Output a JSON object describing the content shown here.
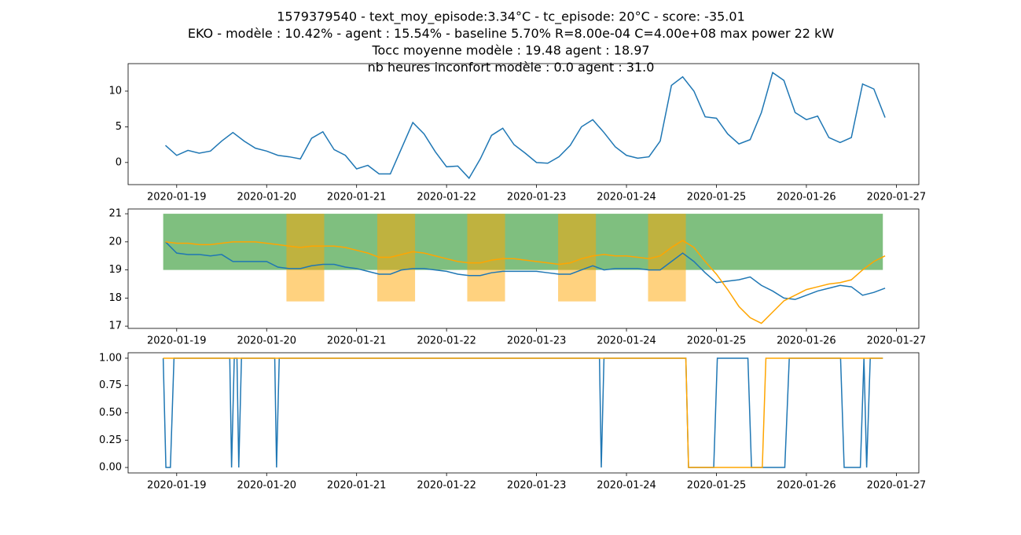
{
  "chart_data": [
    {
      "type": "line",
      "title": [
        "1579379540 - text_moy_episode:3.34°C - tc_episode: 20°C - score: -35.01",
        "EKO - modèle : 10.42% - agent : 15.54% - baseline 5.70% R=8.00e-04 C=4.00e+08 max power 22 kW",
        "Tocc moyenne modèle : 19.48 agent : 18.97",
        "nb heures inconfort modèle : 0.0 agent : 31.0"
      ],
      "xlim": [
        18.46,
        27.25
      ],
      "xticks": [
        {
          "value": 19,
          "label": "2020-01-19"
        },
        {
          "value": 20,
          "label": "2020-01-20"
        },
        {
          "value": 21,
          "label": "2020-01-21"
        },
        {
          "value": 22,
          "label": "2020-01-22"
        },
        {
          "value": 23,
          "label": "2020-01-23"
        },
        {
          "value": 24,
          "label": "2020-01-24"
        },
        {
          "value": 25,
          "label": "2020-01-25"
        },
        {
          "value": 26,
          "label": "2020-01-26"
        },
        {
          "value": 27,
          "label": "2020-01-27"
        }
      ],
      "ylim": [
        -3.1,
        13.85
      ],
      "yticks": [
        0,
        5,
        10
      ],
      "x": [
        18.875,
        19.0,
        19.125,
        19.25,
        19.375,
        19.5,
        19.625,
        19.75,
        19.875,
        20.0,
        20.125,
        20.25,
        20.375,
        20.5,
        20.625,
        20.75,
        20.875,
        21.0,
        21.125,
        21.25,
        21.375,
        21.5,
        21.625,
        21.75,
        21.875,
        22.0,
        22.125,
        22.25,
        22.375,
        22.5,
        22.625,
        22.75,
        22.875,
        23.0,
        23.125,
        23.25,
        23.375,
        23.5,
        23.625,
        23.75,
        23.875,
        24.0,
        24.125,
        24.25,
        24.375,
        24.5,
        24.625,
        24.75,
        24.875,
        25.0,
        25.125,
        25.25,
        25.375,
        25.5,
        25.625,
        25.75,
        25.875,
        26.0,
        26.125,
        26.25,
        26.375,
        26.5,
        26.625,
        26.75,
        26.875
      ],
      "series": [
        {
          "color": "#1f77b4",
          "values": [
            2.4,
            1.0,
            1.7,
            1.3,
            1.6,
            3.0,
            4.2,
            3.0,
            2.0,
            1.6,
            1.0,
            0.8,
            0.5,
            3.4,
            4.3,
            1.8,
            1.0,
            -0.9,
            -0.4,
            -1.6,
            -1.6,
            2.0,
            5.6,
            4.0,
            1.5,
            -0.6,
            -0.5,
            -2.2,
            0.5,
            3.8,
            4.8,
            2.5,
            1.3,
            0.0,
            -0.1,
            0.8,
            2.4,
            5.0,
            6.0,
            4.2,
            2.2,
            1.0,
            0.6,
            0.8,
            3.0,
            10.8,
            12.0,
            10.0,
            6.4,
            6.2,
            4.0,
            2.6,
            3.2,
            7.0,
            12.6,
            11.5,
            7.0,
            6.0,
            6.5,
            3.5,
            2.8,
            3.5,
            11.0,
            10.3,
            6.3
          ]
        }
      ]
    },
    {
      "type": "line",
      "xlim": [
        18.46,
        27.25
      ],
      "xticks": [
        {
          "value": 19,
          "label": "2020-01-19"
        },
        {
          "value": 20,
          "label": "2020-01-20"
        },
        {
          "value": 21,
          "label": "2020-01-21"
        },
        {
          "value": 22,
          "label": "2020-01-22"
        },
        {
          "value": 23,
          "label": "2020-01-23"
        },
        {
          "value": 24,
          "label": "2020-01-24"
        },
        {
          "value": 25,
          "label": "2020-01-25"
        },
        {
          "value": 26,
          "label": "2020-01-26"
        },
        {
          "value": 27,
          "label": "2020-01-27"
        }
      ],
      "ylim": [
        16.92,
        21.17
      ],
      "yticks": [
        17,
        18,
        19,
        20,
        21
      ],
      "comfort_band": {
        "x0": 18.85,
        "x1": 26.85,
        "y0": 19,
        "y1": 21,
        "color": "#008000"
      },
      "occupancy": {
        "color": "#ffa500",
        "y0": 17.88,
        "y1": 21,
        "spans": [
          {
            "x0": 20.22,
            "x1": 20.64
          },
          {
            "x0": 21.23,
            "x1": 21.65
          },
          {
            "x0": 22.23,
            "x1": 22.65
          },
          {
            "x0": 23.24,
            "x1": 23.66
          },
          {
            "x0": 24.24,
            "x1": 24.66
          }
        ]
      },
      "x": [
        18.875,
        19.0,
        19.125,
        19.25,
        19.375,
        19.5,
        19.625,
        19.75,
        19.875,
        20.0,
        20.125,
        20.25,
        20.375,
        20.5,
        20.625,
        20.75,
        20.875,
        21.0,
        21.125,
        21.25,
        21.375,
        21.5,
        21.625,
        21.75,
        21.875,
        22.0,
        22.125,
        22.25,
        22.375,
        22.5,
        22.625,
        22.75,
        22.875,
        23.0,
        23.125,
        23.25,
        23.375,
        23.5,
        23.625,
        23.75,
        23.875,
        24.0,
        24.125,
        24.25,
        24.375,
        24.5,
        24.625,
        24.75,
        24.875,
        25.0,
        25.125,
        25.25,
        25.375,
        25.5,
        25.625,
        25.75,
        25.875,
        26.0,
        26.125,
        26.25,
        26.375,
        26.5,
        26.625,
        26.75,
        26.875
      ],
      "series": [
        {
          "color": "#1f77b4",
          "values": [
            20.0,
            19.6,
            19.55,
            19.55,
            19.5,
            19.55,
            19.3,
            19.3,
            19.3,
            19.3,
            19.1,
            19.05,
            19.05,
            19.15,
            19.2,
            19.2,
            19.1,
            19.05,
            18.95,
            18.85,
            18.85,
            19.0,
            19.05,
            19.05,
            19.0,
            18.95,
            18.85,
            18.8,
            18.8,
            18.9,
            18.95,
            18.95,
            18.95,
            18.95,
            18.9,
            18.85,
            18.85,
            19.0,
            19.15,
            19.0,
            19.05,
            19.05,
            19.05,
            19.0,
            19.0,
            19.3,
            19.6,
            19.3,
            18.9,
            18.55,
            18.6,
            18.65,
            18.75,
            18.45,
            18.25,
            18.0,
            17.95,
            18.1,
            18.25,
            18.35,
            18.45,
            18.4,
            18.1,
            18.2,
            18.35
          ]
        },
        {
          "color": "#ffa500",
          "values": [
            20.0,
            19.95,
            19.95,
            19.9,
            19.9,
            19.95,
            20.0,
            20.0,
            20.0,
            19.95,
            19.9,
            19.85,
            19.8,
            19.85,
            19.85,
            19.85,
            19.8,
            19.7,
            19.6,
            19.45,
            19.45,
            19.55,
            19.65,
            19.6,
            19.5,
            19.4,
            19.3,
            19.25,
            19.25,
            19.35,
            19.4,
            19.4,
            19.35,
            19.3,
            19.25,
            19.2,
            19.25,
            19.4,
            19.5,
            19.55,
            19.5,
            19.5,
            19.45,
            19.4,
            19.5,
            19.8,
            20.05,
            19.8,
            19.3,
            18.85,
            18.3,
            17.7,
            17.3,
            17.1,
            17.5,
            17.9,
            18.1,
            18.3,
            18.4,
            18.5,
            18.55,
            18.65,
            19.0,
            19.3,
            19.5
          ]
        }
      ]
    },
    {
      "type": "line",
      "xlim": [
        18.46,
        27.25
      ],
      "xticks": [
        {
          "value": 19,
          "label": "2020-01-19"
        },
        {
          "value": 20,
          "label": "2020-01-20"
        },
        {
          "value": 21,
          "label": "2020-01-21"
        },
        {
          "value": 22,
          "label": "2020-01-22"
        },
        {
          "value": 23,
          "label": "2020-01-23"
        },
        {
          "value": 24,
          "label": "2020-01-24"
        },
        {
          "value": 25,
          "label": "2020-01-25"
        },
        {
          "value": 26,
          "label": "2020-01-26"
        },
        {
          "value": 27,
          "label": "2020-01-27"
        }
      ],
      "ylim": [
        -0.05,
        1.05
      ],
      "yticks": [
        {
          "value": 0,
          "label": "0.00"
        },
        {
          "value": 0.25,
          "label": "0.25"
        },
        {
          "value": 0.5,
          "label": "0.50"
        },
        {
          "value": 0.75,
          "label": "0.75"
        },
        {
          "value": 1,
          "label": "1.00"
        }
      ],
      "series": [
        {
          "color": "#1f77b4",
          "x": [
            18.85,
            18.88,
            18.93,
            18.97,
            19.59,
            19.61,
            19.64,
            19.67,
            19.69,
            19.72,
            20.09,
            20.11,
            20.14,
            23.7,
            23.72,
            23.75,
            24.66,
            24.69,
            24.97,
            25.01,
            25.35,
            25.39,
            25.76,
            25.81,
            26.38,
            26.42,
            26.6,
            26.64,
            26.67,
            26.71,
            26.85
          ],
          "values": [
            1,
            0,
            0,
            1,
            1,
            0,
            1,
            1,
            0,
            1,
            1,
            0,
            1,
            1,
            0,
            1,
            1,
            0,
            0,
            1,
            1,
            0,
            0,
            1,
            1,
            0,
            0,
            1,
            0,
            1,
            1
          ]
        },
        {
          "color": "#ffa500",
          "x": [
            18.85,
            24.66,
            24.69,
            25.51,
            25.55,
            26.85
          ],
          "values": [
            1,
            1,
            0,
            0,
            1,
            1
          ]
        }
      ]
    }
  ]
}
